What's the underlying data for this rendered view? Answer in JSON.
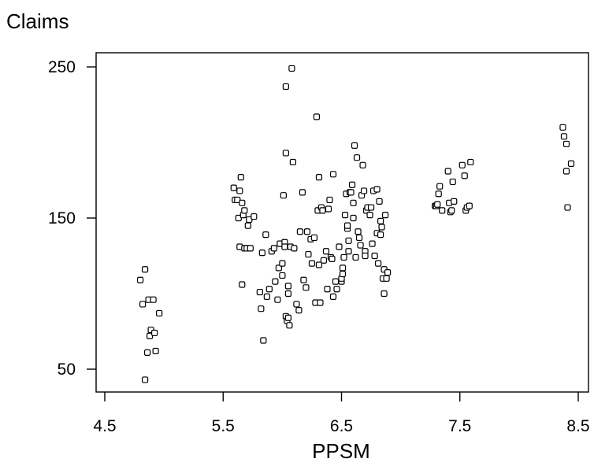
{
  "chart_data": {
    "type": "scatter",
    "title": "",
    "xlabel": "PPSM",
    "ylabel": "Claims",
    "xlim": [
      4.5,
      8.5
    ],
    "ylim": [
      50,
      250
    ],
    "x_ticks": [
      "4.5",
      "5.5",
      "6.5",
      "7.5",
      "8.5"
    ],
    "y_ticks": [
      "50",
      "150",
      "250"
    ],
    "grid": false,
    "legend": "none",
    "marker": "open-square",
    "series": [
      {
        "points": [
          [
            4.8,
            109
          ],
          [
            4.82,
            93
          ],
          [
            4.84,
            116
          ],
          [
            4.84,
            43
          ],
          [
            4.86,
            61
          ],
          [
            4.87,
            96
          ],
          [
            4.88,
            72
          ],
          [
            4.89,
            76
          ],
          [
            4.91,
            96
          ],
          [
            4.92,
            74
          ],
          [
            4.93,
            62
          ],
          [
            4.96,
            87
          ],
          [
            5.59,
            170
          ],
          [
            5.6,
            162
          ],
          [
            5.62,
            162
          ],
          [
            5.63,
            150
          ],
          [
            5.64,
            131
          ],
          [
            5.64,
            168
          ],
          [
            5.65,
            177
          ],
          [
            5.66,
            160
          ],
          [
            5.66,
            106
          ],
          [
            5.67,
            152
          ],
          [
            5.68,
            155
          ],
          [
            5.68,
            130
          ],
          [
            5.7,
            130
          ],
          [
            5.71,
            145
          ],
          [
            5.72,
            149
          ],
          [
            5.73,
            130
          ],
          [
            5.76,
            151
          ],
          [
            5.81,
            101
          ],
          [
            5.82,
            90
          ],
          [
            5.83,
            127
          ],
          [
            5.84,
            69
          ],
          [
            5.86,
            139
          ],
          [
            5.87,
            98
          ],
          [
            5.89,
            103
          ],
          [
            5.91,
            128
          ],
          [
            5.93,
            130
          ],
          [
            5.94,
            108
          ],
          [
            5.96,
            96
          ],
          [
            5.97,
            117
          ],
          [
            5.98,
            133
          ],
          [
            6.0,
            112
          ],
          [
            6.0,
            120
          ],
          [
            6.01,
            165
          ],
          [
            6.02,
            134
          ],
          [
            6.02,
            131
          ],
          [
            6.03,
            85
          ],
          [
            6.03,
            193
          ],
          [
            6.03,
            237
          ],
          [
            6.04,
            82
          ],
          [
            6.05,
            100
          ],
          [
            6.05,
            105
          ],
          [
            6.05,
            84
          ],
          [
            6.06,
            79
          ],
          [
            6.07,
            131
          ],
          [
            6.08,
            249
          ],
          [
            6.09,
            187
          ],
          [
            6.1,
            130
          ],
          [
            6.12,
            93
          ],
          [
            6.14,
            89
          ],
          [
            6.15,
            141
          ],
          [
            6.17,
            167
          ],
          [
            6.18,
            109
          ],
          [
            6.2,
            104
          ],
          [
            6.21,
            141
          ],
          [
            6.22,
            126
          ],
          [
            6.24,
            136
          ],
          [
            6.25,
            120
          ],
          [
            6.27,
            137
          ],
          [
            6.28,
            94
          ],
          [
            6.29,
            217
          ],
          [
            6.3,
            155
          ],
          [
            6.31,
            119
          ],
          [
            6.31,
            177
          ],
          [
            6.32,
            94
          ],
          [
            6.33,
            157
          ],
          [
            6.34,
            155
          ],
          [
            6.35,
            122
          ],
          [
            6.37,
            128
          ],
          [
            6.38,
            103
          ],
          [
            6.39,
            156
          ],
          [
            6.4,
            162
          ],
          [
            6.41,
            124
          ],
          [
            6.42,
            123
          ],
          [
            6.43,
            98
          ],
          [
            6.43,
            179
          ],
          [
            6.45,
            108
          ],
          [
            6.46,
            103
          ],
          [
            6.48,
            131
          ],
          [
            6.5,
            108
          ],
          [
            6.5,
            110
          ],
          [
            6.51,
            113
          ],
          [
            6.51,
            117
          ],
          [
            6.52,
            124
          ],
          [
            6.53,
            152
          ],
          [
            6.54,
            166
          ],
          [
            6.55,
            143
          ],
          [
            6.55,
            145
          ],
          [
            6.56,
            128
          ],
          [
            6.56,
            135
          ],
          [
            6.57,
            167
          ],
          [
            6.58,
            167
          ],
          [
            6.59,
            172
          ],
          [
            6.6,
            160
          ],
          [
            6.6,
            150
          ],
          [
            6.61,
            198
          ],
          [
            6.62,
            124
          ],
          [
            6.63,
            190
          ],
          [
            6.64,
            141
          ],
          [
            6.65,
            137
          ],
          [
            6.66,
            132
          ],
          [
            6.67,
            165
          ],
          [
            6.68,
            185
          ],
          [
            6.69,
            168
          ],
          [
            6.7,
            128
          ],
          [
            6.7,
            125
          ],
          [
            6.71,
            155
          ],
          [
            6.72,
            157
          ],
          [
            6.74,
            152
          ],
          [
            6.75,
            157
          ],
          [
            6.76,
            133
          ],
          [
            6.77,
            168
          ],
          [
            6.78,
            125
          ],
          [
            6.8,
            140
          ],
          [
            6.8,
            169
          ],
          [
            6.81,
            120
          ],
          [
            6.82,
            161
          ],
          [
            6.83,
            139
          ],
          [
            6.83,
            148
          ],
          [
            6.84,
            144
          ],
          [
            6.85,
            110
          ],
          [
            6.86,
            100
          ],
          [
            6.86,
            116
          ],
          [
            6.87,
            152
          ],
          [
            6.88,
            110
          ],
          [
            6.89,
            114
          ],
          [
            7.29,
            158
          ],
          [
            7.3,
            158
          ],
          [
            7.31,
            159
          ],
          [
            7.32,
            166
          ],
          [
            7.33,
            171
          ],
          [
            7.35,
            155
          ],
          [
            7.4,
            181
          ],
          [
            7.41,
            160
          ],
          [
            7.42,
            154
          ],
          [
            7.43,
            155
          ],
          [
            7.44,
            174
          ],
          [
            7.45,
            161
          ],
          [
            7.52,
            185
          ],
          [
            7.54,
            178
          ],
          [
            7.55,
            155
          ],
          [
            7.56,
            157
          ],
          [
            7.58,
            158
          ],
          [
            7.59,
            187
          ],
          [
            8.37,
            210
          ],
          [
            8.38,
            204
          ],
          [
            8.4,
            199
          ],
          [
            8.4,
            181
          ],
          [
            8.41,
            157
          ],
          [
            8.44,
            186
          ]
        ]
      }
    ]
  }
}
